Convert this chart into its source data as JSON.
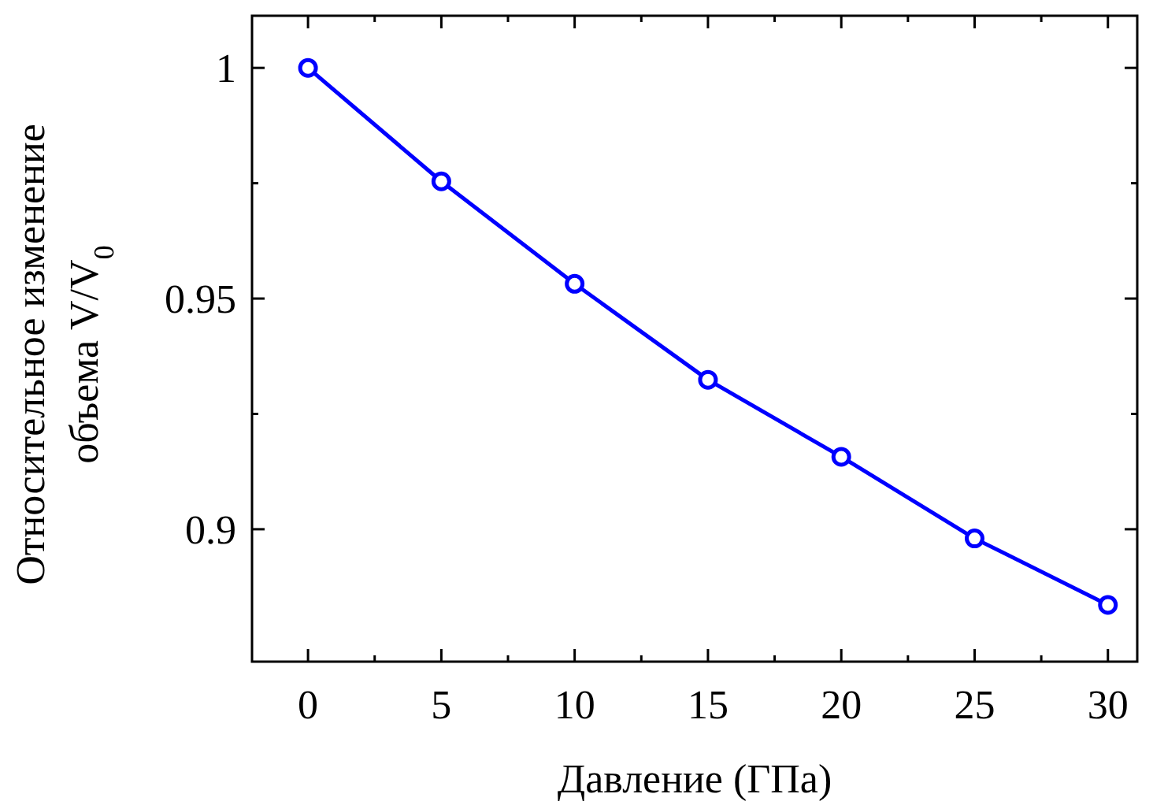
{
  "chart_data": {
    "type": "line",
    "xlabel": "Давление (ГПа)",
    "ylabel": "Относительное изменение\nобъема V/V$_{0}$",
    "x": [
      0,
      5,
      10,
      15,
      20,
      25,
      30
    ],
    "series": [
      {
        "color": "#0000ff",
        "values": [
          1.0,
          0.9754,
          0.9532,
          0.9324,
          0.9157,
          0.898,
          0.8836
        ]
      }
    ],
    "xlim": [
      -2.1,
      31.1
    ],
    "ylim": [
      0.8713,
      1.0113
    ],
    "xticks": [
      0,
      5,
      10,
      15,
      20,
      25,
      30
    ],
    "yticks": [
      {
        "value": 0.9,
        "label": "0.9"
      },
      {
        "value": 0.95,
        "label": "0.95"
      },
      {
        "value": 1,
        "label": "1"
      }
    ],
    "marker": "circle",
    "line_style": "solid",
    "grid": false
  }
}
